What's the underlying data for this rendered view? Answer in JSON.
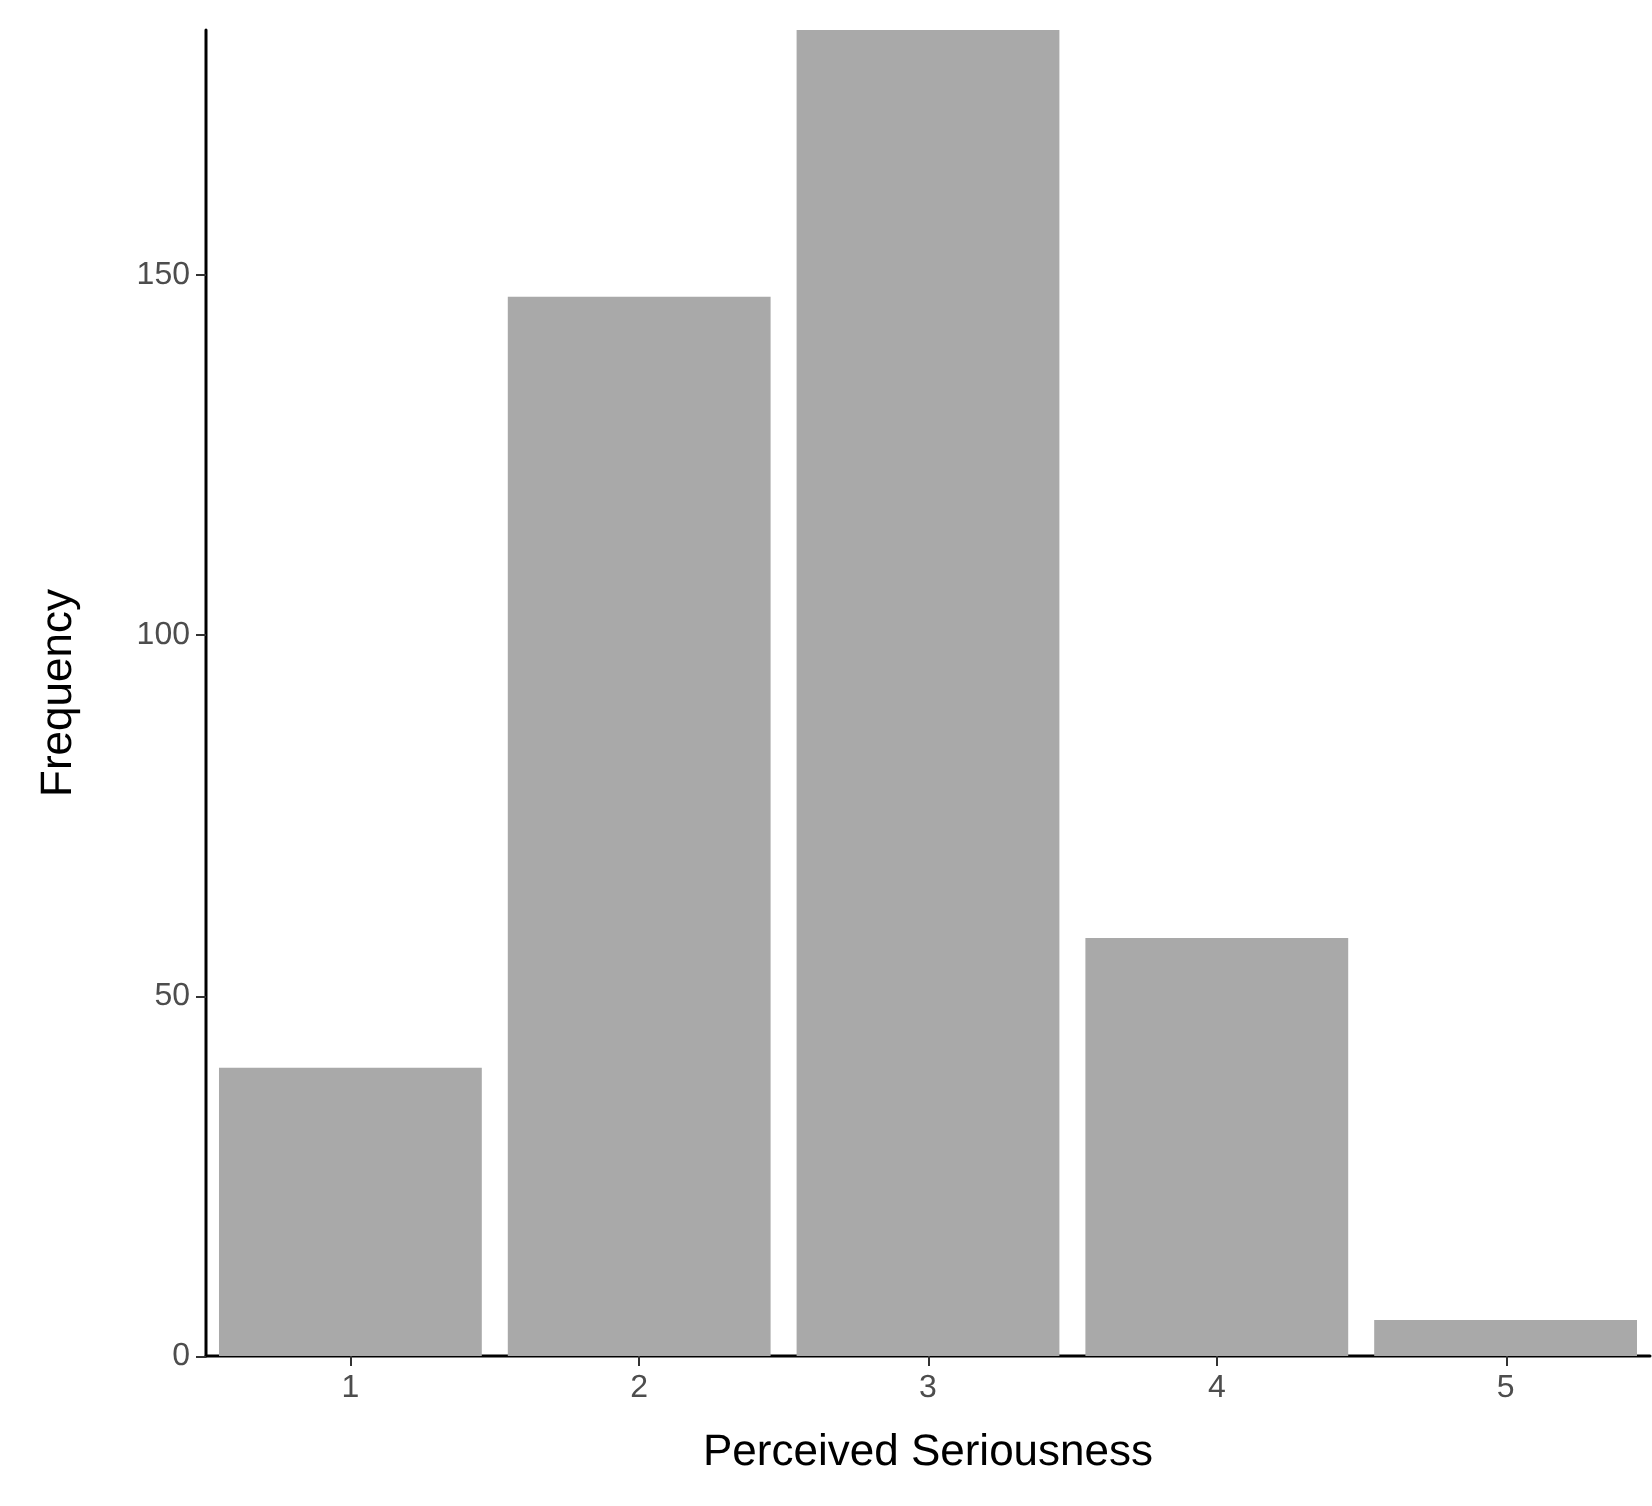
{
  "chart_data": {
    "type": "bar",
    "xlabel": "Perceived Seriousness",
    "ylabel": "Frequency",
    "categories": [
      "1",
      "2",
      "3",
      "4",
      "5"
    ],
    "values": [
      40,
      147,
      184,
      58,
      5
    ],
    "color": "#a9a9a9",
    "ylim": [
      0,
      184
    ],
    "yticks": [
      0,
      50,
      100,
      150
    ],
    "grid": false
  }
}
